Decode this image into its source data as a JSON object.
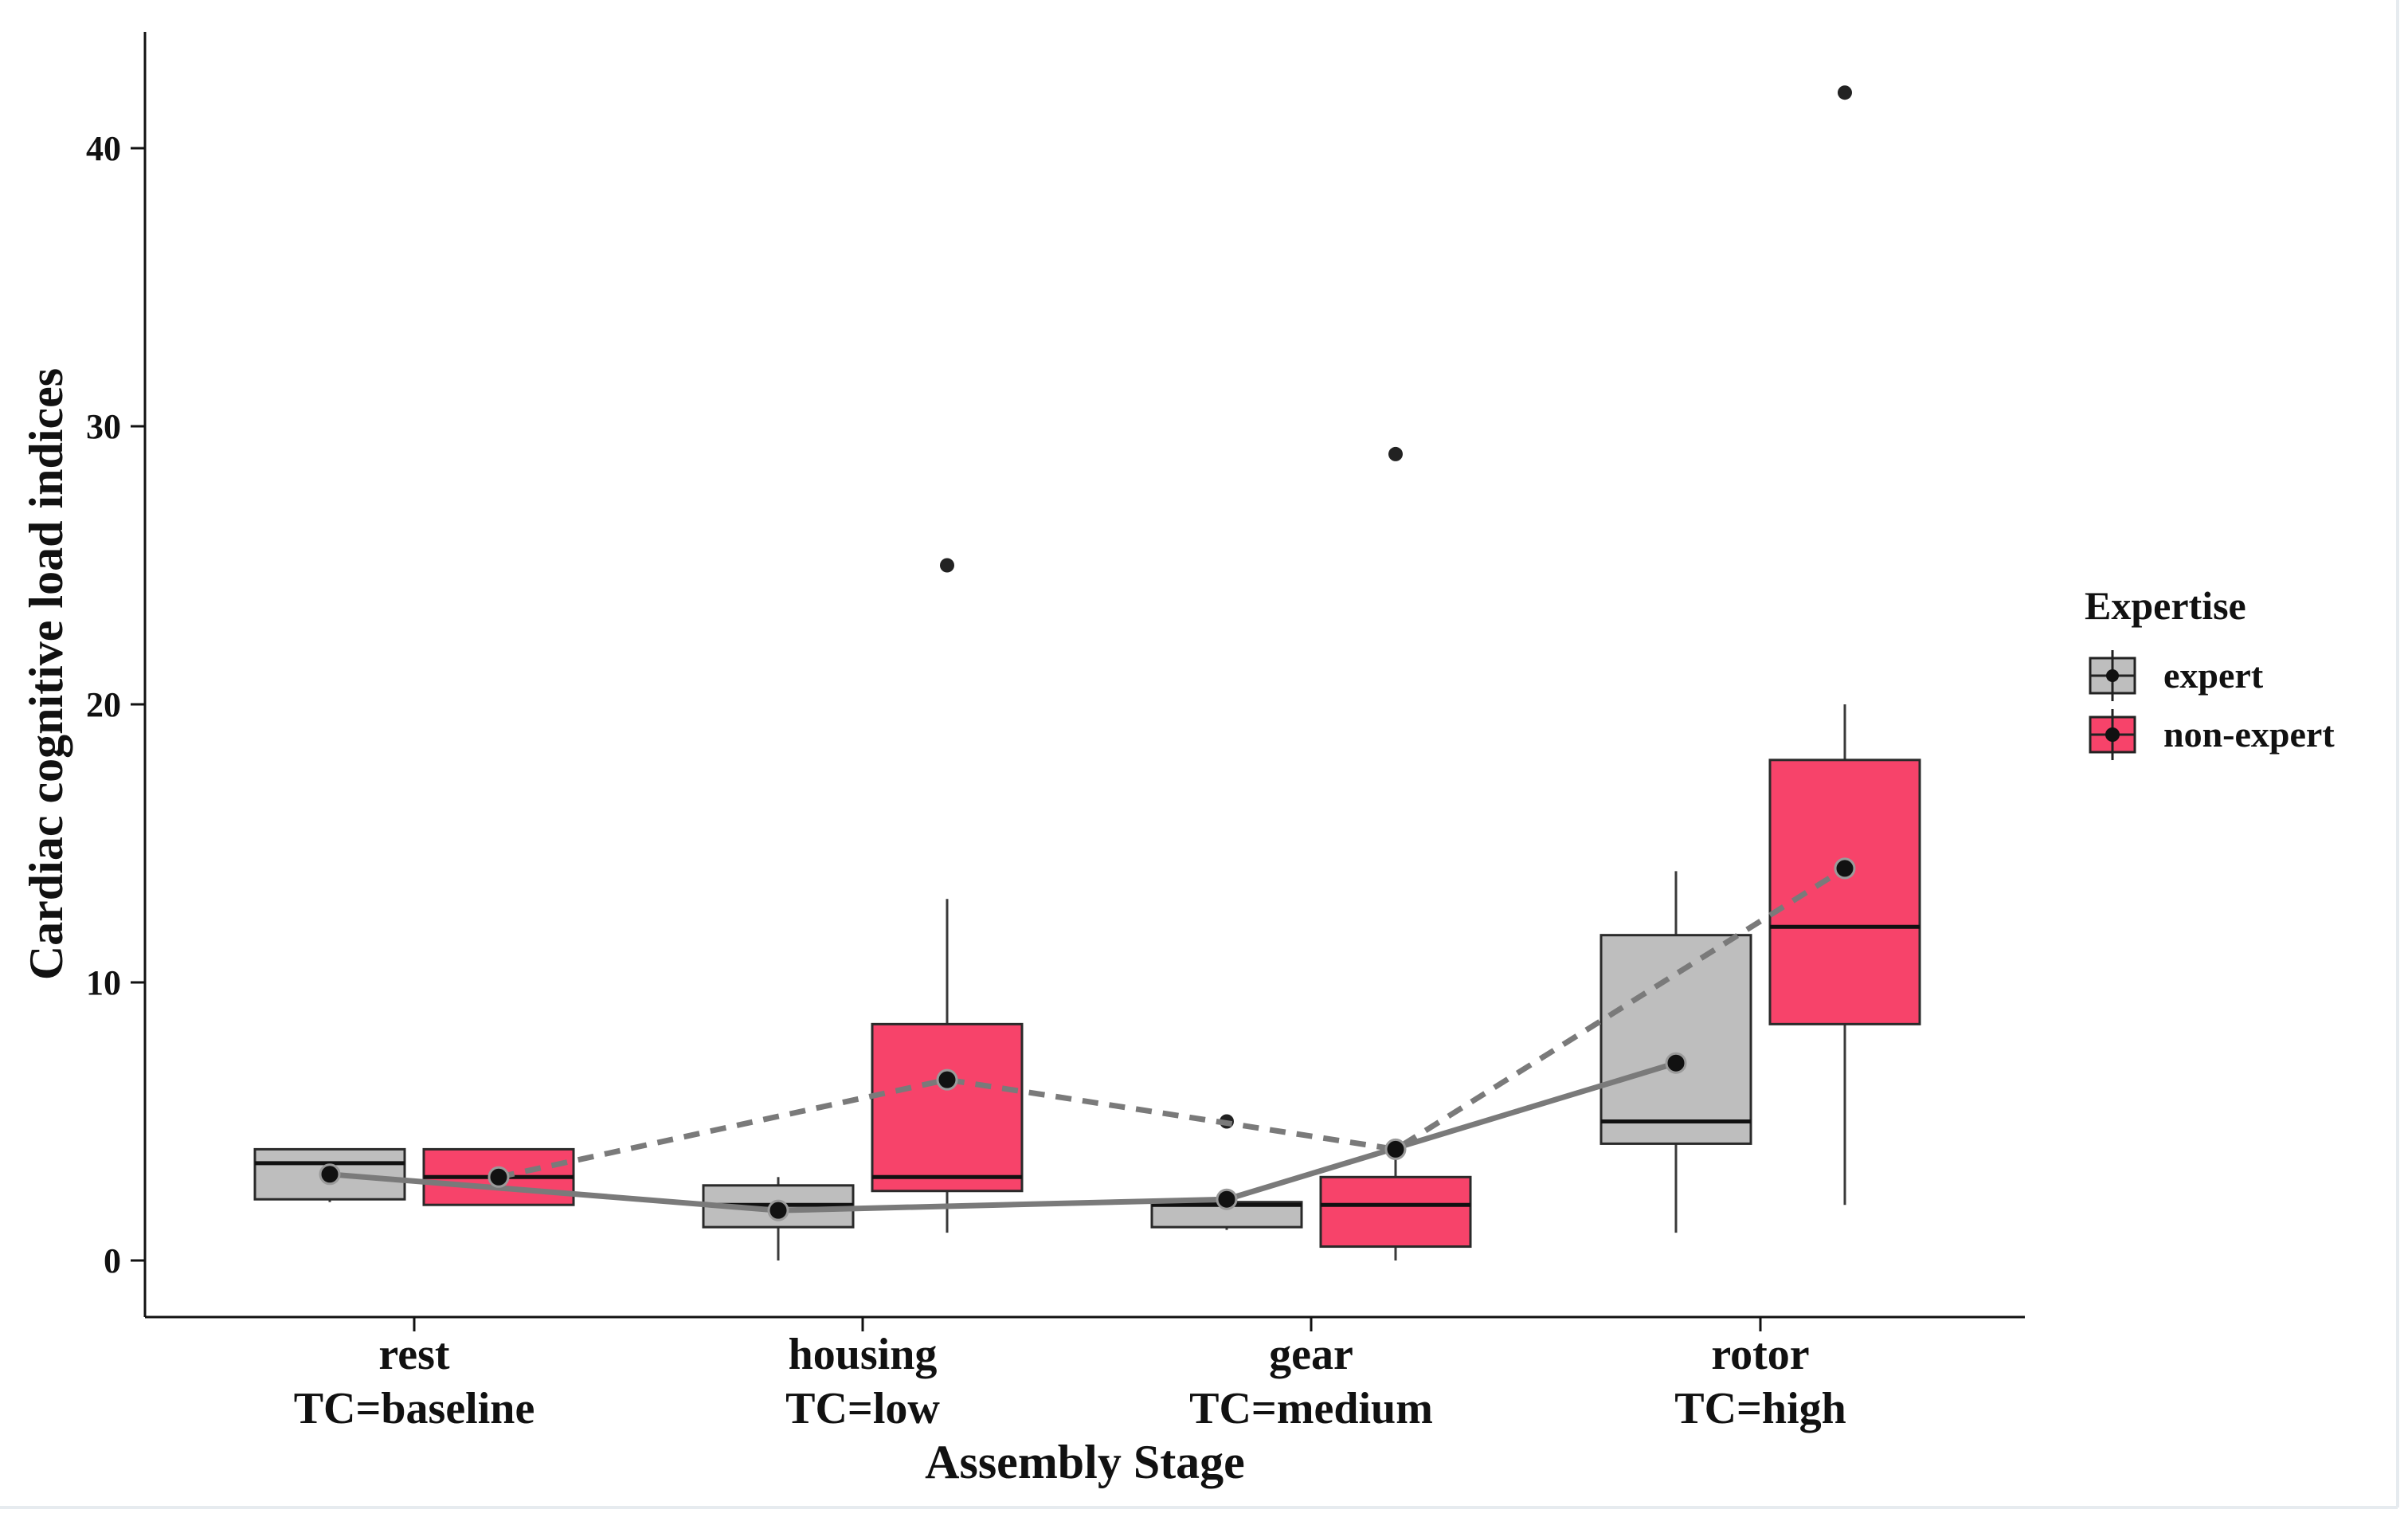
{
  "chart_data": {
    "type": "box",
    "title": "",
    "xlabel": "Assembly Stage",
    "ylabel": "Cardiac cognitive load indices",
    "ylim": [
      -2,
      44
    ],
    "yticks": [
      0,
      10,
      20,
      30,
      40
    ],
    "grid": false,
    "legend": {
      "title": "Expertise",
      "position": "right",
      "entries": [
        "expert",
        "non-expert"
      ]
    },
    "categories": [
      {
        "line1": "rest",
        "line2": "TC=baseline"
      },
      {
        "line1": "housing",
        "line2": "TC=low"
      },
      {
        "line1": "gear",
        "line2": "TC=medium"
      },
      {
        "line1": "rotor",
        "line2": "TC=high"
      }
    ],
    "series": [
      {
        "name": "expert",
        "color": "#bebebe",
        "mean_line_style": "solid",
        "boxes": [
          {
            "whisker_low": 2.1,
            "q1": 2.2,
            "median": 3.5,
            "q3": 4.0,
            "whisker_high": 4.0,
            "mean": 3.1,
            "outliers": []
          },
          {
            "whisker_low": 0.0,
            "q1": 1.2,
            "median": 2.0,
            "q3": 2.7,
            "whisker_high": 3.0,
            "mean": 1.8,
            "outliers": []
          },
          {
            "whisker_low": 1.1,
            "q1": 1.2,
            "median": 2.0,
            "q3": 2.1,
            "whisker_high": 2.2,
            "mean": 2.2,
            "outliers": [
              5.0
            ]
          },
          {
            "whisker_low": 1.0,
            "q1": 4.2,
            "median": 5.0,
            "q3": 11.7,
            "whisker_high": 14.0,
            "mean": 7.1,
            "outliers": []
          }
        ]
      },
      {
        "name": "non-expert",
        "color": "#f7436a",
        "mean_line_style": "dashed",
        "boxes": [
          {
            "whisker_low": 2.0,
            "q1": 2.0,
            "median": 3.0,
            "q3": 4.0,
            "whisker_high": 4.0,
            "mean": 3.0,
            "outliers": []
          },
          {
            "whisker_low": 1.0,
            "q1": 2.5,
            "median": 3.0,
            "q3": 8.5,
            "whisker_high": 13.0,
            "mean": 6.5,
            "outliers": [
              25.0
            ]
          },
          {
            "whisker_low": 0.0,
            "q1": 0.5,
            "median": 2.0,
            "q3": 3.0,
            "whisker_high": 4.0,
            "mean": 4.0,
            "outliers": [
              29.0
            ]
          },
          {
            "whisker_low": 2.0,
            "q1": 8.5,
            "median": 12.0,
            "q3": 18.0,
            "whisker_high": 20.0,
            "mean": 14.1,
            "outliers": [
              42.0
            ]
          }
        ]
      }
    ]
  }
}
